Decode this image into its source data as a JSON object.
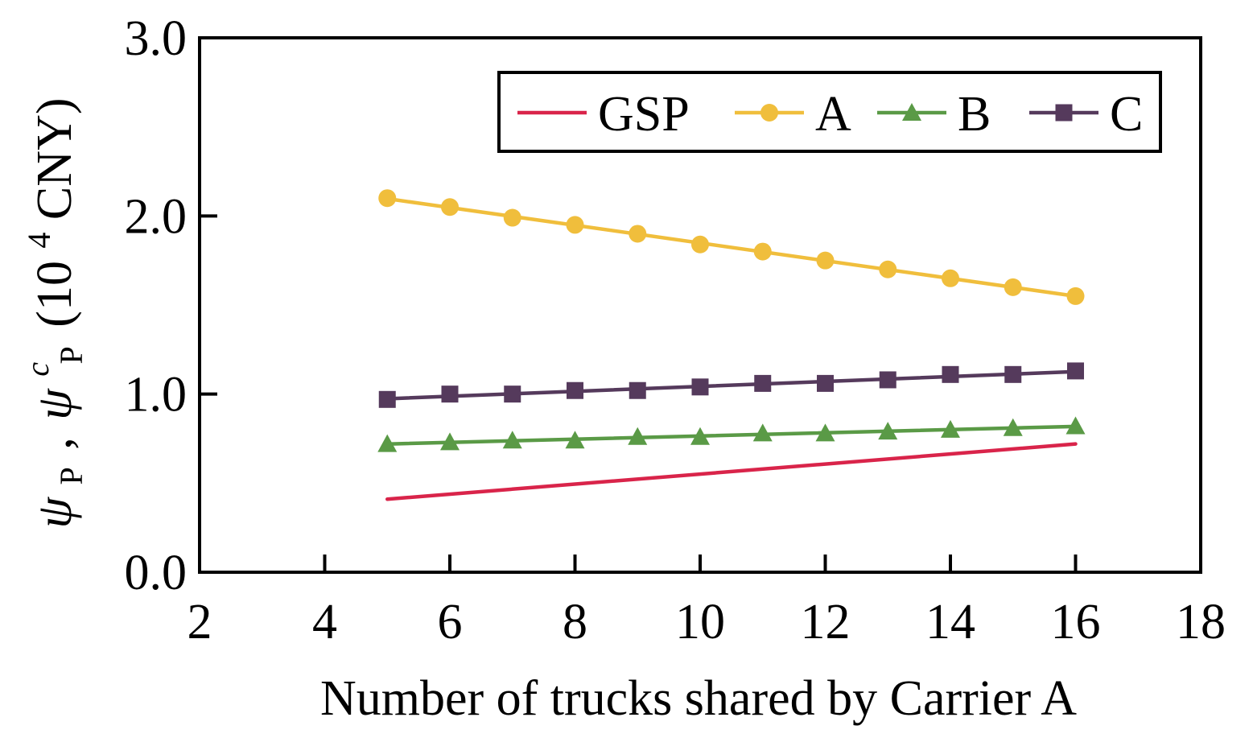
{
  "chart_data": {
    "type": "line",
    "xlabel": "Number of trucks shared by Carrier A",
    "ylabel": {
      "sym1": "ψ",
      "sub1": "P",
      "sep": ",",
      "sym2": "ψ",
      "sub2": "P",
      "sup2": "c",
      "unit_prefix": "(10",
      "unit_sup": "4",
      "unit_suffix": "CNY)"
    },
    "xlim": [
      2,
      18
    ],
    "ylim": [
      0.0,
      3.0
    ],
    "xticks": [
      "2",
      "4",
      "6",
      "8",
      "10",
      "12",
      "14",
      "16",
      "18"
    ],
    "yticks": [
      "0.0",
      "1.0",
      "2.0",
      "3.0"
    ],
    "grid": false,
    "legend_position": "top-right",
    "series": [
      {
        "name": "GSP",
        "color": "#d9244a",
        "marker": "none",
        "x": [
          5,
          16
        ],
        "y": [
          0.41,
          0.72
        ]
      },
      {
        "name": "A",
        "color": "#f0be3c",
        "marker": "circle",
        "x": [
          5,
          6,
          7,
          8,
          9,
          10,
          11,
          12,
          13,
          14,
          15,
          16
        ],
        "y": [
          2.1,
          2.05,
          1.99,
          1.95,
          1.9,
          1.84,
          1.8,
          1.75,
          1.7,
          1.65,
          1.6,
          1.55
        ]
      },
      {
        "name": "B",
        "color": "#5a9a46",
        "marker": "triangle",
        "x": [
          5,
          6,
          7,
          8,
          9,
          10,
          11,
          12,
          13,
          14,
          15,
          16
        ],
        "y": [
          0.72,
          0.73,
          0.74,
          0.74,
          0.76,
          0.76,
          0.78,
          0.78,
          0.79,
          0.8,
          0.81,
          0.82
        ]
      },
      {
        "name": "C",
        "color": "#553a5c",
        "marker": "square",
        "x": [
          5,
          6,
          7,
          8,
          9,
          10,
          11,
          12,
          13,
          14,
          15,
          16
        ],
        "y": [
          0.97,
          1.0,
          1.0,
          1.02,
          1.02,
          1.04,
          1.06,
          1.06,
          1.08,
          1.11,
          1.11,
          1.13
        ]
      }
    ]
  }
}
